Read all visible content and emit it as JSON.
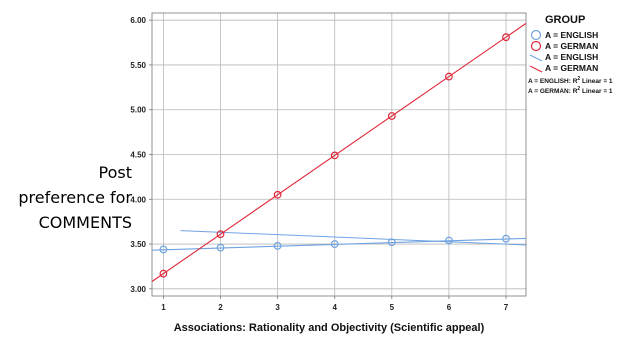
{
  "chart_data": {
    "type": "scatter",
    "xlabel": "Associations: Rationality and Objectivity (Scientific appeal)",
    "ylabel_lines": [
      "Post",
      "preference for",
      "COMMENTS"
    ],
    "xlim": [
      0.8,
      7.35
    ],
    "ylim": [
      2.92,
      6.08
    ],
    "x_ticks": [
      "1",
      "2",
      "3",
      "4",
      "5",
      "6",
      "7"
    ],
    "y_ticks": [
      "3.00",
      "3.50",
      "4.00",
      "4.50",
      "5.00",
      "5.50",
      "6.00"
    ],
    "grid": true,
    "legend": {
      "placement": "top-right",
      "title": "GROUP",
      "marker_labels": [
        "A = ENGLISH",
        "A = GERMAN"
      ],
      "line_labels": [
        "A = ENGLISH",
        "A = GERMAN"
      ],
      "r2_notes": [
        {
          "prefix": "A = ENGLISH: R",
          "sup": "2",
          "suffix": " Linear = 1"
        },
        {
          "prefix": "A = GERMAN: R",
          "sup": "2",
          "suffix": " Linear = 1"
        }
      ]
    },
    "series": [
      {
        "name": "A = ENGLISH",
        "color": "#6fa3e0",
        "x": [
          1,
          2,
          3,
          4,
          5,
          6,
          7
        ],
        "y": [
          3.44,
          3.46,
          3.48,
          3.5,
          3.52,
          3.54,
          3.56
        ],
        "fit": {
          "x": [
            0.8,
            7.35
          ],
          "y": [
            3.432,
            3.563
          ]
        }
      },
      {
        "name": "A = GERMAN",
        "color": "#e0283a",
        "x": [
          1,
          2,
          3,
          4,
          5,
          6,
          7
        ],
        "y": [
          3.17,
          3.61,
          4.05,
          4.49,
          4.93,
          5.37,
          5.81
        ],
        "fit": {
          "x": [
            0.8,
            7.35
          ],
          "y": [
            3.082,
            5.964
          ]
        }
      }
    ],
    "extra_reference_line": {
      "color": "#6fa3e0",
      "x": [
        1.3,
        7.35
      ],
      "y": [
        3.65,
        3.49
      ]
    }
  }
}
